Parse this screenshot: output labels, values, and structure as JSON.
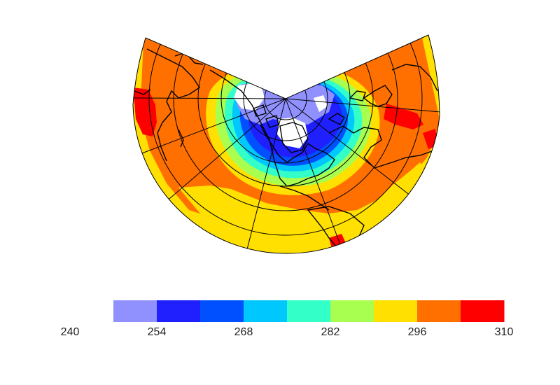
{
  "colorbar": {
    "ticks": [
      "240",
      "254",
      "268",
      "282",
      "296",
      "310"
    ],
    "tick_values": [
      240,
      254,
      268,
      282,
      296,
      310
    ],
    "levels": [
      {
        "min": 247,
        "max": 254,
        "color": "#9090ff"
      },
      {
        "min": 254,
        "max": 261,
        "color": "#2020ff"
      },
      {
        "min": 261,
        "max": 268,
        "color": "#0050ff"
      },
      {
        "min": 268,
        "max": 275,
        "color": "#00c8ff"
      },
      {
        "min": 275,
        "max": 282,
        "color": "#33ffc8"
      },
      {
        "min": 282,
        "max": 289,
        "color": "#a8ff50"
      },
      {
        "min": 289,
        "max": 296,
        "color": "#ffe000"
      },
      {
        "min": 296,
        "max": 303,
        "color": "#ff7000"
      },
      {
        "min": 303,
        "max": 310,
        "color": "#ff0000"
      }
    ]
  },
  "map": {
    "projection": "lambert-conformal-conic",
    "region": "northern-hemisphere",
    "band_colors": [
      "#ffffff",
      "#9090ff",
      "#2020ff",
      "#0050ff",
      "#00c8ff",
      "#33ffc8",
      "#a8ff50",
      "#ffe000",
      "#ff7000",
      "#ff0000"
    ],
    "coastline_color": "#000000",
    "graticule_color": "#000000"
  }
}
